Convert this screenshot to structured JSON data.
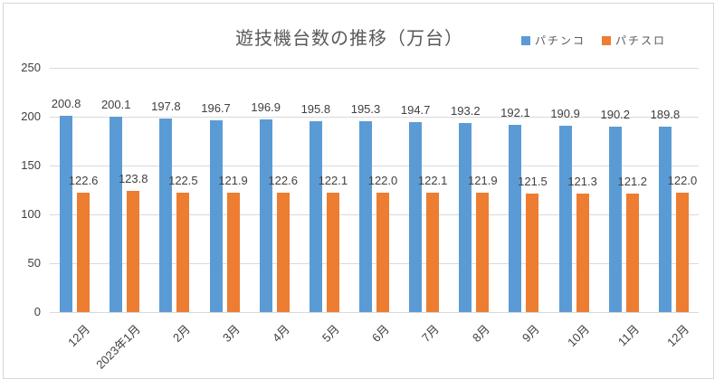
{
  "chart_data": {
    "type": "bar",
    "title": "遊技機台数の推移（万台）",
    "categories": [
      "12月",
      "2023年1月",
      "2月",
      "3月",
      "4月",
      "5月",
      "6月",
      "7月",
      "8月",
      "9月",
      "10月",
      "11月",
      "12月"
    ],
    "series": [
      {
        "name": "パチンコ",
        "color": "#5B9BD5",
        "values": [
          200.8,
          200.1,
          197.8,
          196.7,
          196.9,
          195.8,
          195.3,
          194.7,
          193.2,
          192.1,
          190.9,
          190.2,
          189.8
        ]
      },
      {
        "name": "パチスロ",
        "color": "#ED7D31",
        "values": [
          122.6,
          123.8,
          122.5,
          121.9,
          122.6,
          122.1,
          122.0,
          122.1,
          121.9,
          121.5,
          121.3,
          121.2,
          122.0
        ]
      }
    ],
    "xlabel": "",
    "ylabel": "",
    "ylim": [
      0,
      250
    ],
    "yticks": [
      0,
      50,
      100,
      150,
      200,
      250
    ],
    "grid": true,
    "legend_position": "top-right",
    "value_labels": true,
    "label_decimals": 1,
    "gridline_color": "#d9d9d9",
    "text_color": "#404040",
    "title_color": "#595959"
  }
}
